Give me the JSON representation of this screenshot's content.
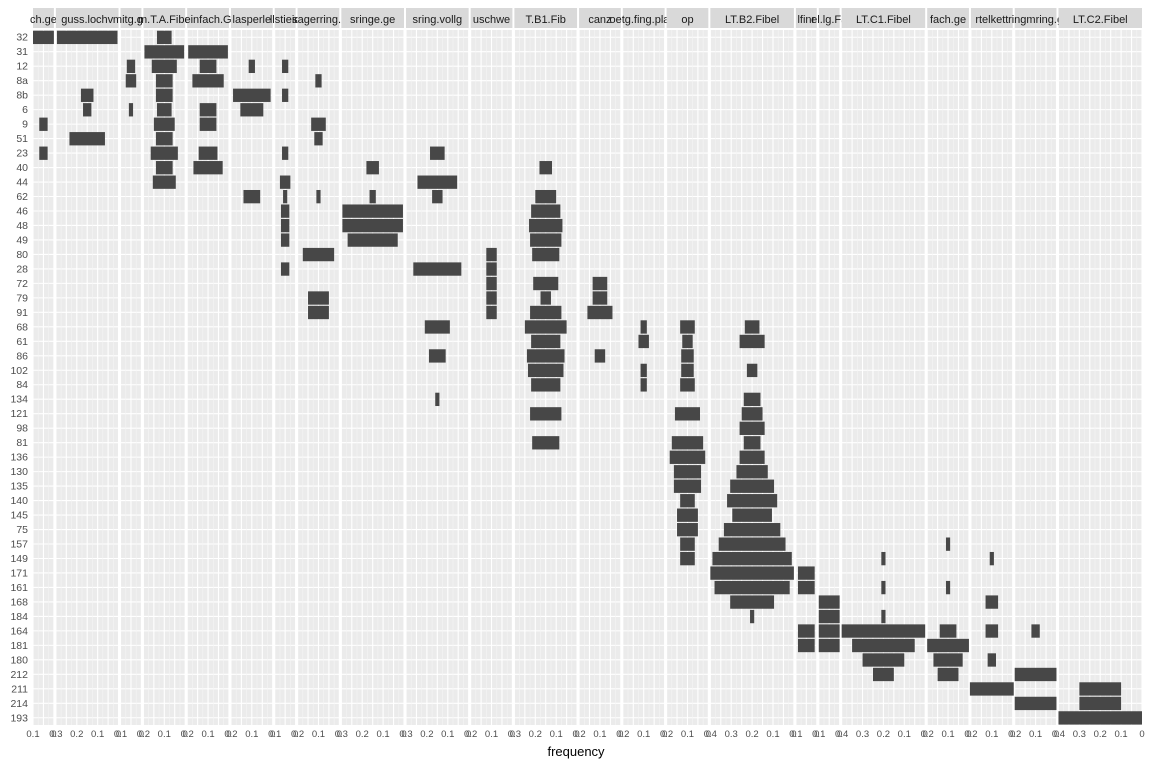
{
  "chart_data": {
    "type": "battleship",
    "xlabel": "frequency",
    "ylabel": "",
    "grid": true,
    "facets": [
      "ch.ge",
      "guss.lochv",
      "mitg.ge",
      "m.T.A.Fibe",
      "einfach.G",
      "lasperle",
      "llstieio",
      "sagerring.r",
      "sringe.ge",
      "sring.vollg",
      "uschwe",
      "T.B1.Fib",
      "canz",
      "oetg.fing.plast",
      "op",
      "LT.B2.Fibel",
      "lfinr",
      "el.lg.Fa",
      "LT.C1.Fibel",
      "fach.ge",
      "rtelkett",
      "ringmring.g",
      "LT.C2.Fibel"
    ],
    "y_categories": [
      "32",
      "31",
      "12",
      "8a",
      "8b",
      "6",
      "9",
      "51",
      "23",
      "40",
      "44",
      "62",
      "46",
      "48",
      "49",
      "80",
      "28",
      "72",
      "79",
      "91",
      "68",
      "61",
      "86",
      "102",
      "84",
      "134",
      "121",
      "98",
      "81",
      "136",
      "130",
      "135",
      "140",
      "145",
      "75",
      "157",
      "149",
      "171",
      "161",
      "168",
      "184",
      "164",
      "181",
      "180",
      "212",
      "211",
      "214",
      "193"
    ],
    "facet_max": [
      0.1,
      0.3,
      0.1,
      0.2,
      0.2,
      0.2,
      0.1,
      0.2,
      0.3,
      0.3,
      0.2,
      0.3,
      0.2,
      0.2,
      0.2,
      0.4,
      0.1,
      0.1,
      0.4,
      0.2,
      0.2,
      0.2,
      0.4
    ],
    "x_tick_labels": [
      [
        "0.1",
        "0"
      ],
      [
        "0.3",
        "0.2",
        "0.1",
        "0"
      ],
      [
        "0.1",
        "0"
      ],
      [
        "0.2",
        "0.1",
        "0"
      ],
      [
        "0.2",
        "0.1",
        "0"
      ],
      [
        "0.2",
        "0.1",
        "0"
      ],
      [
        "0.1",
        "0"
      ],
      [
        "0.2",
        "0.1",
        "0"
      ],
      [
        "0.3",
        "0.2",
        "0.1",
        "0"
      ],
      [
        "0.3",
        "0.2",
        "0.1",
        "0"
      ],
      [
        "0.2",
        "0.1",
        "0"
      ],
      [
        "0.3",
        "0.2",
        "0.1",
        "0"
      ],
      [
        "0.2",
        "0.1",
        "0"
      ],
      [
        "0.2",
        "0.1",
        "0"
      ],
      [
        "0.2",
        "0.1",
        "0"
      ],
      [
        "0.4",
        "0.3",
        "0.2",
        "0.1",
        "0"
      ],
      [
        "0.1",
        "0"
      ],
      [
        "0.1",
        "0"
      ],
      [
        "0.4",
        "0.3",
        "0.2",
        "0.1",
        "0"
      ],
      [
        "0.2",
        "0.1",
        "0"
      ],
      [
        "0.2",
        "0.1",
        "0"
      ],
      [
        "0.2",
        "0.1",
        "0"
      ],
      [
        "0.4",
        "0.3",
        "0.2",
        "0.1",
        "0"
      ]
    ],
    "series": [
      {
        "name": "ch.ge",
        "values": [
          [
            0,
            0.1
          ],
          [
            6,
            0.04
          ],
          [
            8,
            0.04
          ]
        ]
      },
      {
        "name": "guss.lochv",
        "values": [
          [
            0,
            0.29
          ],
          [
            4,
            0.06
          ],
          [
            5,
            0.04
          ],
          [
            7,
            0.17
          ]
        ]
      },
      {
        "name": "mitg.ge",
        "values": [
          [
            2,
            0.04
          ],
          [
            3,
            0.05
          ],
          [
            5,
            0.02
          ]
        ]
      },
      {
        "name": "m.T.A.Fibe",
        "values": [
          [
            0,
            0.07
          ],
          [
            1,
            0.19
          ],
          [
            2,
            0.12
          ],
          [
            3,
            0.08
          ],
          [
            4,
            0.08
          ],
          [
            5,
            0.07
          ],
          [
            6,
            0.1
          ],
          [
            7,
            0.08
          ],
          [
            8,
            0.13
          ],
          [
            9,
            0.08
          ],
          [
            10,
            0.11
          ]
        ]
      },
      {
        "name": "einfach.G",
        "values": [
          [
            1,
            0.19
          ],
          [
            2,
            0.08
          ],
          [
            3,
            0.15
          ],
          [
            5,
            0.08
          ],
          [
            6,
            0.08
          ],
          [
            8,
            0.09
          ],
          [
            9,
            0.14
          ]
        ]
      },
      {
        "name": "lasperle",
        "values": [
          [
            2,
            0.03
          ],
          [
            4,
            0.18
          ],
          [
            5,
            0.11
          ],
          [
            11,
            0.08
          ]
        ]
      },
      {
        "name": "llstieio",
        "values": [
          [
            2,
            0.03
          ],
          [
            4,
            0.03
          ],
          [
            8,
            0.03
          ],
          [
            10,
            0.05
          ],
          [
            11,
            0.02
          ],
          [
            12,
            0.04
          ],
          [
            13,
            0.04
          ],
          [
            14,
            0.04
          ],
          [
            16,
            0.04
          ]
        ]
      },
      {
        "name": "sagerring.r",
        "values": [
          [
            3,
            0.03
          ],
          [
            6,
            0.07
          ],
          [
            7,
            0.04
          ],
          [
            11,
            0.02
          ],
          [
            15,
            0.15
          ],
          [
            18,
            0.1
          ],
          [
            19,
            0.1
          ]
        ]
      },
      {
        "name": "sringe.ge",
        "values": [
          [
            9,
            0.06
          ],
          [
            11,
            0.03
          ],
          [
            12,
            0.29
          ],
          [
            13,
            0.29
          ],
          [
            14,
            0.24
          ]
        ]
      },
      {
        "name": "sring.vollg",
        "values": [
          [
            8,
            0.07
          ],
          [
            10,
            0.19
          ],
          [
            11,
            0.05
          ],
          [
            16,
            0.23
          ],
          [
            20,
            0.12
          ],
          [
            22,
            0.08
          ],
          [
            25,
            0.02
          ]
        ]
      },
      {
        "name": "uschwe",
        "values": [
          [
            15,
            0.05
          ],
          [
            16,
            0.05
          ],
          [
            17,
            0.05
          ],
          [
            18,
            0.05
          ],
          [
            19,
            0.05
          ]
        ]
      },
      {
        "name": "T.B1.Fib",
        "values": [
          [
            9,
            0.06
          ],
          [
            11,
            0.1
          ],
          [
            12,
            0.14
          ],
          [
            13,
            0.16
          ],
          [
            14,
            0.15
          ],
          [
            15,
            0.13
          ],
          [
            17,
            0.12
          ],
          [
            18,
            0.05
          ],
          [
            19,
            0.15
          ],
          [
            20,
            0.2
          ],
          [
            21,
            0.14
          ],
          [
            22,
            0.18
          ],
          [
            23,
            0.17
          ],
          [
            24,
            0.14
          ],
          [
            26,
            0.15
          ],
          [
            28,
            0.13
          ]
        ]
      },
      {
        "name": "canz",
        "values": [
          [
            17,
            0.07
          ],
          [
            18,
            0.07
          ],
          [
            19,
            0.12
          ],
          [
            22,
            0.05
          ]
        ]
      },
      {
        "name": "oetg.fing.plast",
        "values": [
          [
            20,
            0.03
          ],
          [
            21,
            0.05
          ],
          [
            23,
            0.03
          ],
          [
            24,
            0.03
          ]
        ]
      },
      {
        "name": "op",
        "values": [
          [
            20,
            0.07
          ],
          [
            21,
            0.05
          ],
          [
            22,
            0.06
          ],
          [
            23,
            0.06
          ],
          [
            24,
            0.07
          ],
          [
            26,
            0.12
          ],
          [
            28,
            0.15
          ],
          [
            29,
            0.17
          ],
          [
            30,
            0.13
          ],
          [
            31,
            0.13
          ],
          [
            32,
            0.07
          ],
          [
            33,
            0.1
          ],
          [
            34,
            0.1
          ],
          [
            35,
            0.07
          ],
          [
            36,
            0.07
          ]
        ]
      },
      {
        "name": "LT.B2.Fibel",
        "values": [
          [
            20,
            0.07
          ],
          [
            21,
            0.12
          ],
          [
            23,
            0.05
          ],
          [
            25,
            0.08
          ],
          [
            26,
            0.1
          ],
          [
            27,
            0.12
          ],
          [
            28,
            0.08
          ],
          [
            29,
            0.12
          ],
          [
            30,
            0.15
          ],
          [
            31,
            0.21
          ],
          [
            32,
            0.24
          ],
          [
            33,
            0.19
          ],
          [
            34,
            0.27
          ],
          [
            35,
            0.32
          ],
          [
            36,
            0.38
          ],
          [
            37,
            0.4
          ],
          [
            38,
            0.36
          ],
          [
            39,
            0.21
          ],
          [
            40,
            0.02
          ]
        ]
      },
      {
        "name": "lfinr",
        "values": [
          [
            37,
            0.08
          ],
          [
            38,
            0.08
          ],
          [
            41,
            0.08
          ],
          [
            42,
            0.08
          ]
        ]
      },
      {
        "name": "el.lg.Fa",
        "values": [
          [
            39,
            0.1
          ],
          [
            40,
            0.1
          ],
          [
            41,
            0.1
          ],
          [
            42,
            0.1
          ]
        ]
      },
      {
        "name": "LT.C1.Fibel",
        "values": [
          [
            36,
            0.02
          ],
          [
            38,
            0.02
          ],
          [
            40,
            0.02
          ],
          [
            41,
            0.4
          ],
          [
            42,
            0.3
          ],
          [
            43,
            0.2
          ],
          [
            44,
            0.1
          ]
        ]
      },
      {
        "name": "fach.ge",
        "values": [
          [
            35,
            0.02
          ],
          [
            38,
            0.02
          ],
          [
            41,
            0.08
          ],
          [
            42,
            0.2
          ],
          [
            43,
            0.14
          ],
          [
            44,
            0.1
          ]
        ]
      },
      {
        "name": "rtelkett",
        "values": [
          [
            36,
            0.02
          ],
          [
            39,
            0.06
          ],
          [
            41,
            0.06
          ],
          [
            43,
            0.04
          ],
          [
            45,
            0.21
          ]
        ]
      },
      {
        "name": "ringmring.g",
        "values": [
          [
            41,
            0.04
          ],
          [
            44,
            0.2
          ],
          [
            46,
            0.2
          ]
        ]
      },
      {
        "name": "LT.C2.Fibel",
        "values": [
          [
            45,
            0.2
          ],
          [
            46,
            0.2
          ],
          [
            47,
            0.4
          ]
        ]
      }
    ]
  }
}
